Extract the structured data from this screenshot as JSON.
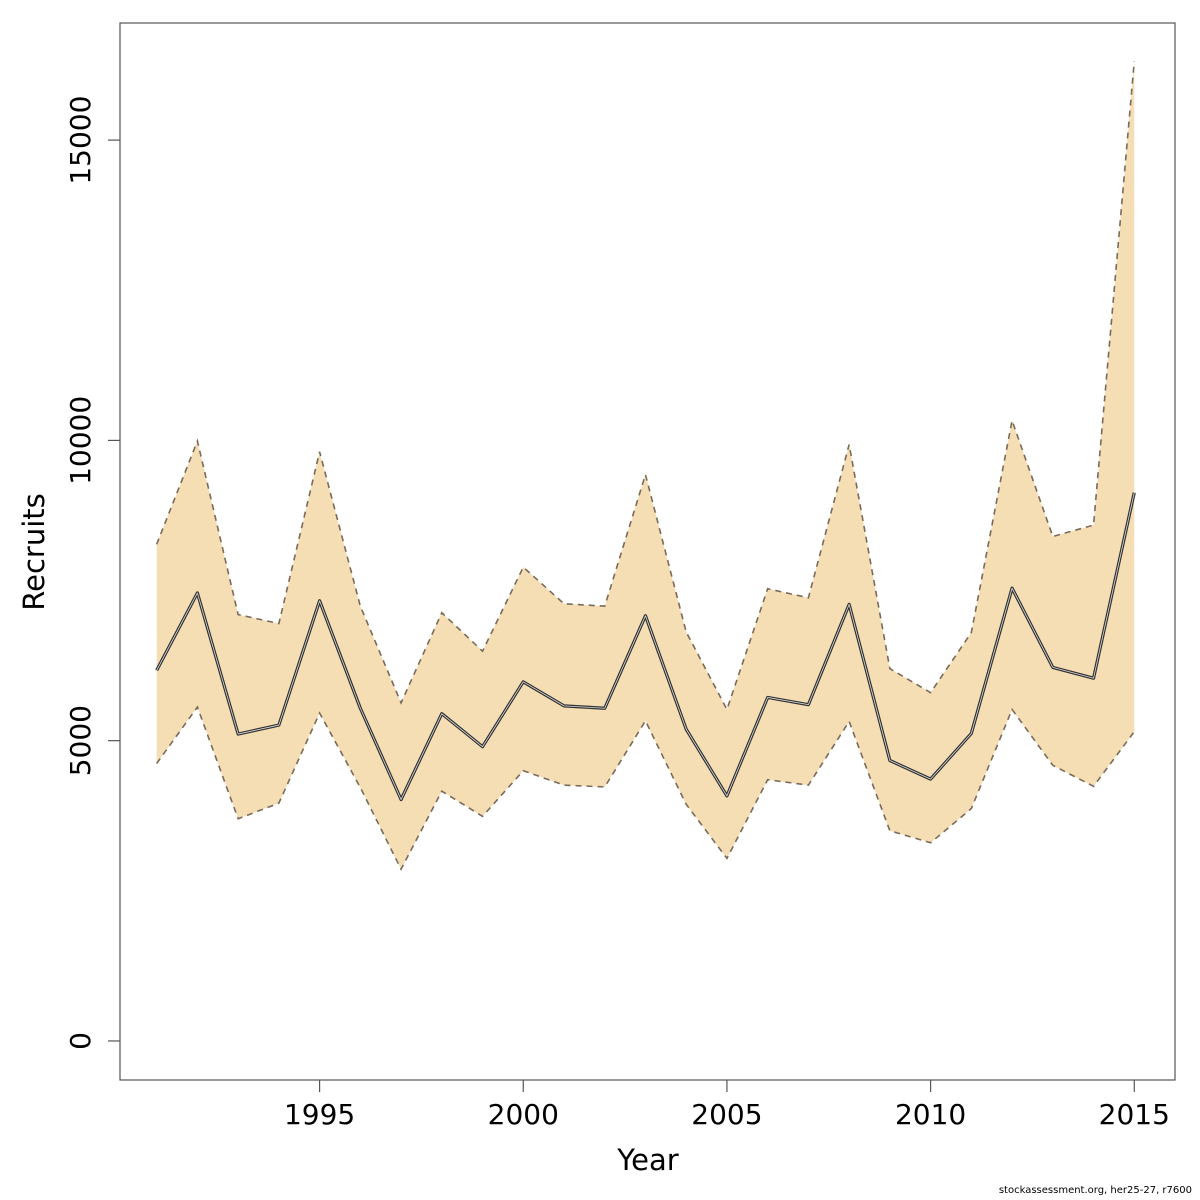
{
  "chart_data": {
    "type": "area",
    "title": "",
    "xlabel": "Year",
    "ylabel": "Recruits",
    "xlim": [
      1990.1,
      2016.0
    ],
    "ylim": [
      -650,
      16950
    ],
    "x_ticks": [
      1995,
      2000,
      2005,
      2010,
      2015
    ],
    "y_ticks": [
      0,
      5000,
      10000,
      15000
    ],
    "grid": false,
    "legend": "none",
    "colors": {
      "band_fill": "#f5deb3",
      "band_edge": "#7a6a5a",
      "line": "#333333",
      "axis": "#555555"
    },
    "x": [
      1991,
      1992,
      1993,
      1994,
      1995,
      1996,
      1997,
      1998,
      1999,
      2000,
      2001,
      2002,
      2003,
      2004,
      2005,
      2006,
      2007,
      2008,
      2009,
      2010,
      2011,
      2012,
      2013,
      2014,
      2015
    ],
    "series": [
      {
        "name": "",
        "role": "estimate",
        "values": [
          6170,
          7460,
          5110,
          5260,
          7330,
          5540,
          4020,
          5450,
          4900,
          5980,
          5580,
          5540,
          7080,
          5190,
          4080,
          5720,
          5600,
          7270,
          4670,
          4360,
          5120,
          7540,
          6220,
          6040,
          9130
        ]
      },
      {
        "name": "",
        "role": "upper",
        "values": [
          8270,
          9990,
          7100,
          6950,
          9810,
          7240,
          5630,
          7130,
          6490,
          7890,
          7280,
          7240,
          9430,
          6810,
          5520,
          7530,
          7380,
          9930,
          6200,
          5800,
          6800,
          10330,
          8400,
          8590,
          16310
        ]
      },
      {
        "name": "",
        "role": "lower",
        "values": [
          4620,
          5560,
          3700,
          3960,
          5460,
          4220,
          2860,
          4160,
          3740,
          4500,
          4260,
          4230,
          5330,
          3940,
          3040,
          4350,
          4260,
          5320,
          3500,
          3300,
          3870,
          5520,
          4590,
          4240,
          5150
        ]
      }
    ]
  },
  "footer": {
    "text": "stockassessment.org, her25-27, r7600"
  }
}
